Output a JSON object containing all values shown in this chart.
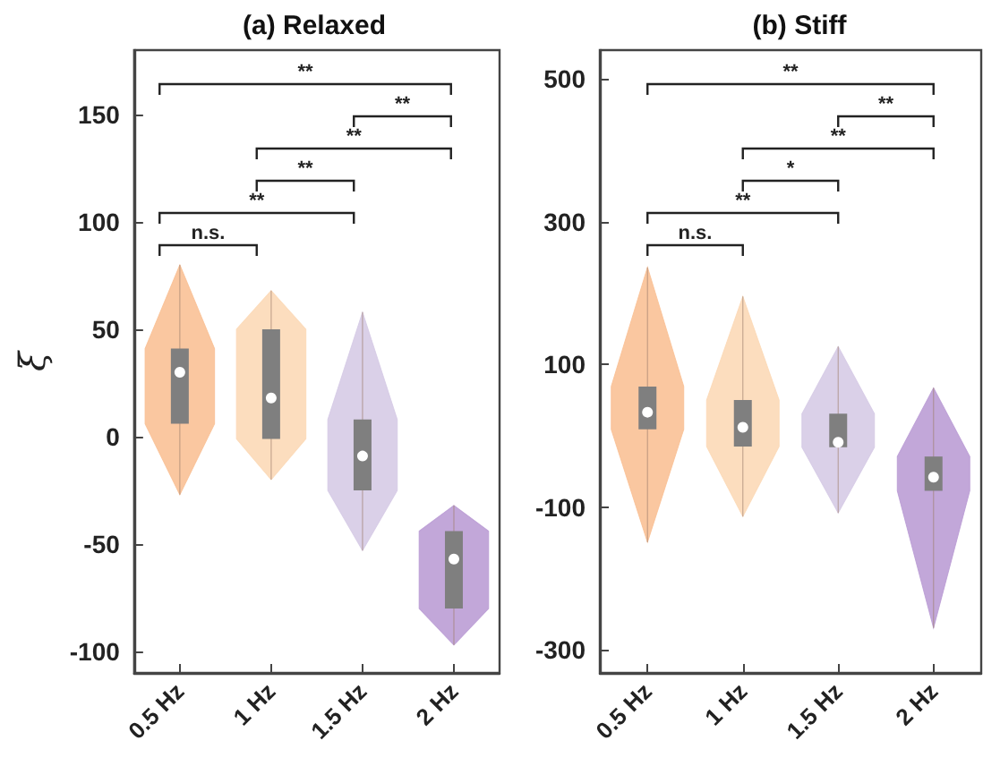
{
  "chart_data": [
    {
      "type": "box",
      "title": "(a) Relaxed",
      "ylabel": "ξ",
      "categories": [
        "0.5 Hz",
        "1 Hz",
        "1.5 Hz",
        "2 Hz"
      ],
      "color": "#7f7f7f",
      "boxes": [
        {
          "low": -27,
          "q1": 6,
          "median": 30,
          "q3": 41,
          "high": 80
        },
        {
          "low": -20,
          "q1": -1,
          "median": 18,
          "q3": 50,
          "high": 68
        },
        {
          "low": -53,
          "q1": -25,
          "median": -9,
          "q3": 8,
          "high": 58
        },
        {
          "low": -97,
          "q1": -80,
          "median": -57,
          "q3": -44,
          "high": -32
        }
      ],
      "ylim": [
        -110,
        180
      ],
      "yticks": [
        -100,
        -50,
        0,
        50,
        100,
        150
      ],
      "annotations": [
        "**",
        "**",
        "**",
        "**",
        "**",
        "n.s."
      ]
    },
    {
      "type": "box",
      "title": "(b) Stiff",
      "categories": [
        "0.5 Hz",
        "1 Hz",
        "1.5 Hz",
        "2 Hz"
      ],
      "color": "#7f7f7f",
      "boxes": [
        {
          "low": -149,
          "q1": 9,
          "median": 33,
          "q3": 69,
          "high": 236
        },
        {
          "low": -113,
          "q1": -15,
          "median": 12,
          "q3": 50,
          "high": 195
        },
        {
          "low": -108,
          "q1": -16,
          "median": -9,
          "q3": 31,
          "high": 125
        },
        {
          "low": -269,
          "q1": -77,
          "median": -58,
          "q3": -29,
          "high": 67
        }
      ],
      "ylim": [
        -332,
        540
      ],
      "yticks": [
        -300,
        -100,
        100,
        300,
        500
      ],
      "annotations": [
        "**",
        "**",
        "**",
        "*",
        "**",
        "n.s."
      ]
    }
  ]
}
